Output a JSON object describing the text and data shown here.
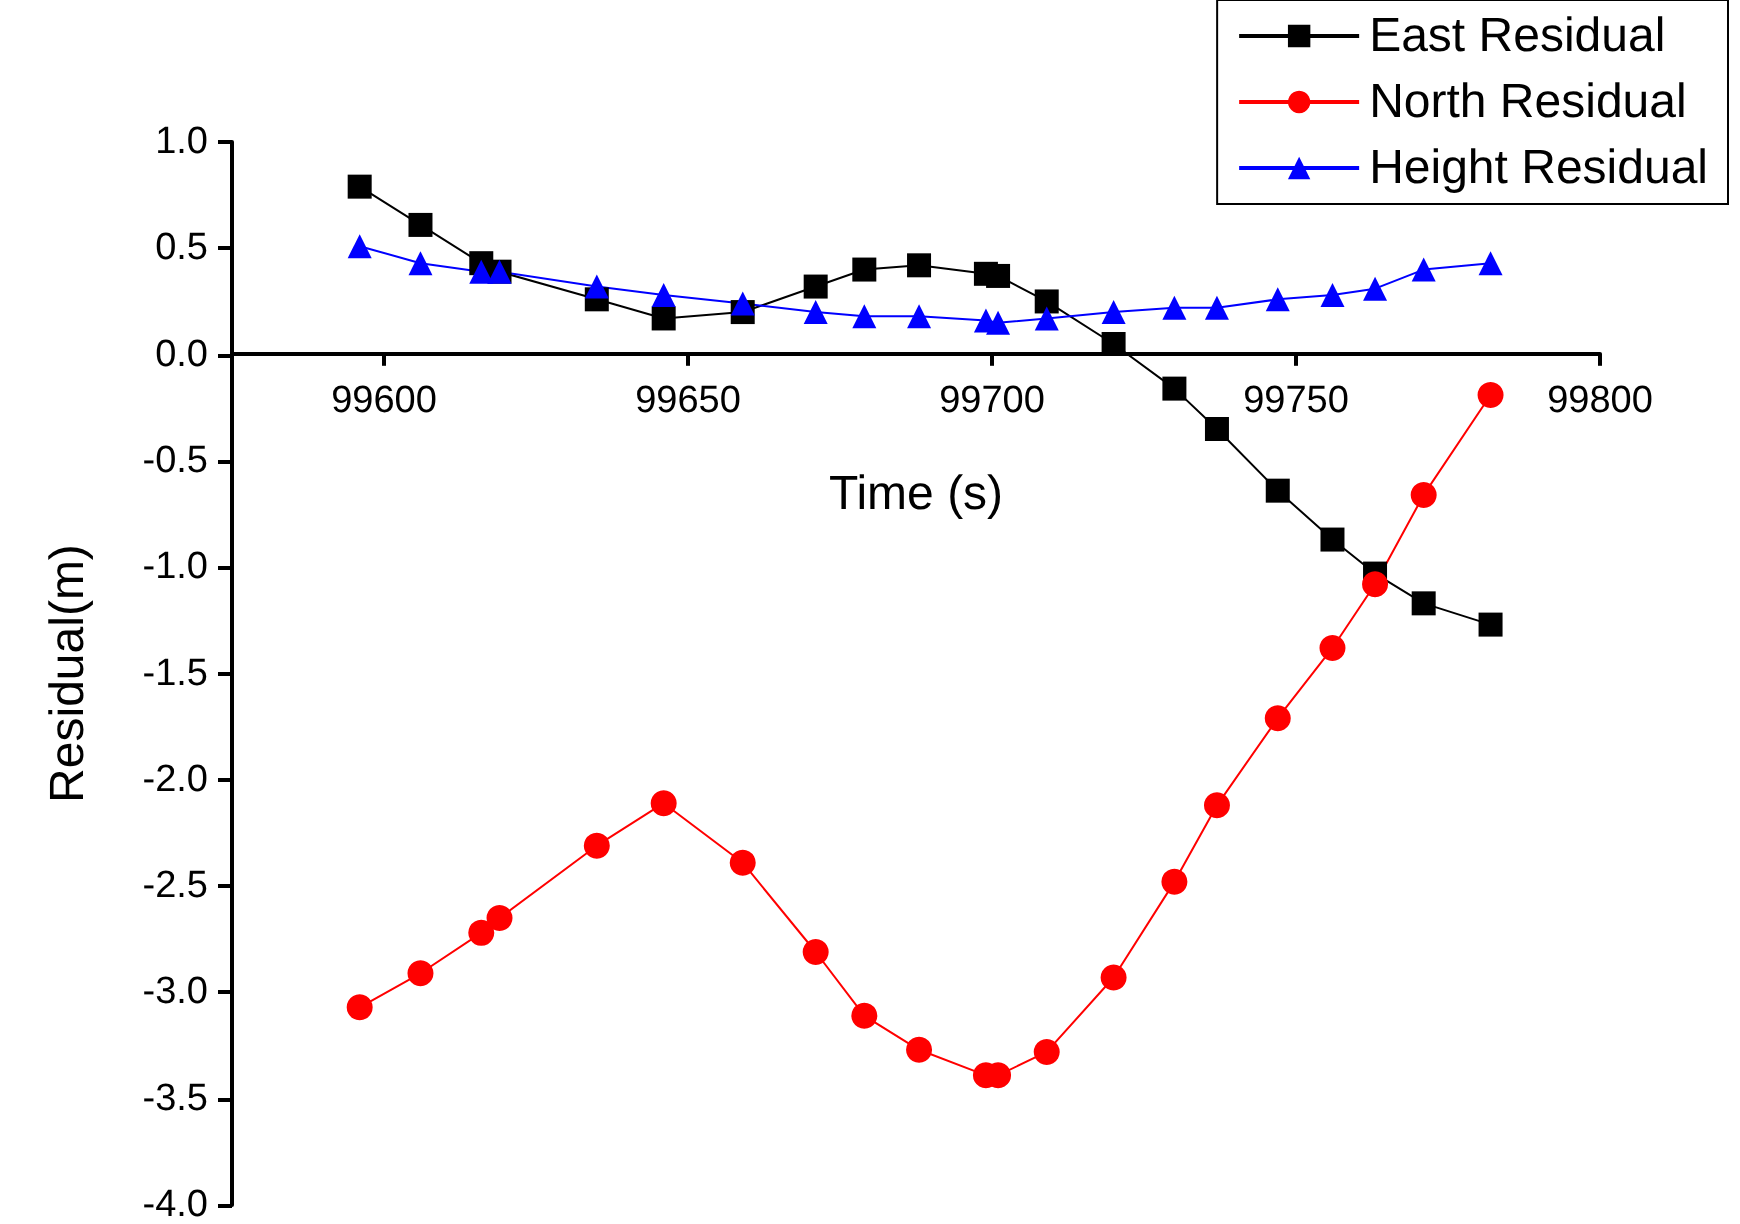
{
  "chart_data": {
    "type": "line",
    "xlabel": "Time (s)",
    "ylabel": "Residual(m)",
    "x": [
      99596,
      99606,
      99616,
      99619,
      99635,
      99646,
      99659,
      99671,
      99679,
      99688,
      99699,
      99701,
      99709,
      99720,
      99730,
      99737,
      99747,
      99756,
      99763,
      99771,
      99782
    ],
    "series": [
      {
        "name": "East Residual",
        "color": "#000000",
        "marker": "square",
        "values": [
          0.79,
          0.61,
          0.43,
          0.39,
          0.26,
          0.17,
          0.2,
          0.32,
          0.4,
          0.42,
          0.38,
          0.37,
          0.25,
          0.05,
          -0.16,
          -0.35,
          -0.64,
          -0.87,
          -1.03,
          -1.17,
          -1.27
        ]
      },
      {
        "name": "North Residual",
        "color": "#ff0000",
        "marker": "circle",
        "values": [
          -3.07,
          -2.91,
          -2.72,
          -2.65,
          -2.31,
          -2.11,
          -2.39,
          -2.81,
          -3.11,
          -3.27,
          -3.39,
          -3.39,
          -3.28,
          -2.93,
          -2.48,
          -2.12,
          -1.71,
          -1.38,
          -1.08,
          -0.66,
          -0.19
        ]
      },
      {
        "name": "Height Residual",
        "color": "#0000ff",
        "marker": "triangle",
        "values": [
          0.51,
          0.43,
          0.39,
          0.39,
          0.32,
          0.28,
          0.24,
          0.2,
          0.18,
          0.18,
          0.16,
          0.15,
          0.17,
          0.2,
          0.22,
          0.22,
          0.26,
          0.28,
          0.31,
          0.4,
          0.43
        ]
      }
    ],
    "xlim": [
      99575,
      99800
    ],
    "xticks": [
      99600,
      99650,
      99700,
      99750,
      99800
    ],
    "ylim": [
      -4.0,
      1.0
    ],
    "yticks": [
      {
        "value": -4.0,
        "label": "-4.0"
      },
      {
        "value": -3.5,
        "label": "-3.5"
      },
      {
        "value": -3.0,
        "label": "-3.0"
      },
      {
        "value": -2.5,
        "label": "-2.5"
      },
      {
        "value": -2.0,
        "label": "-2.0"
      },
      {
        "value": -1.5,
        "label": "-1.5"
      },
      {
        "value": -1.0,
        "label": "-1.0"
      },
      {
        "value": -0.5,
        "label": "-0.5"
      },
      {
        "value": 0,
        "label": "0.0"
      },
      {
        "value": 0.5,
        "label": "0.5"
      },
      {
        "value": 1.0,
        "label": "1.0"
      }
    ],
    "grid": false,
    "legend": "top right",
    "line_style": "solid"
  }
}
